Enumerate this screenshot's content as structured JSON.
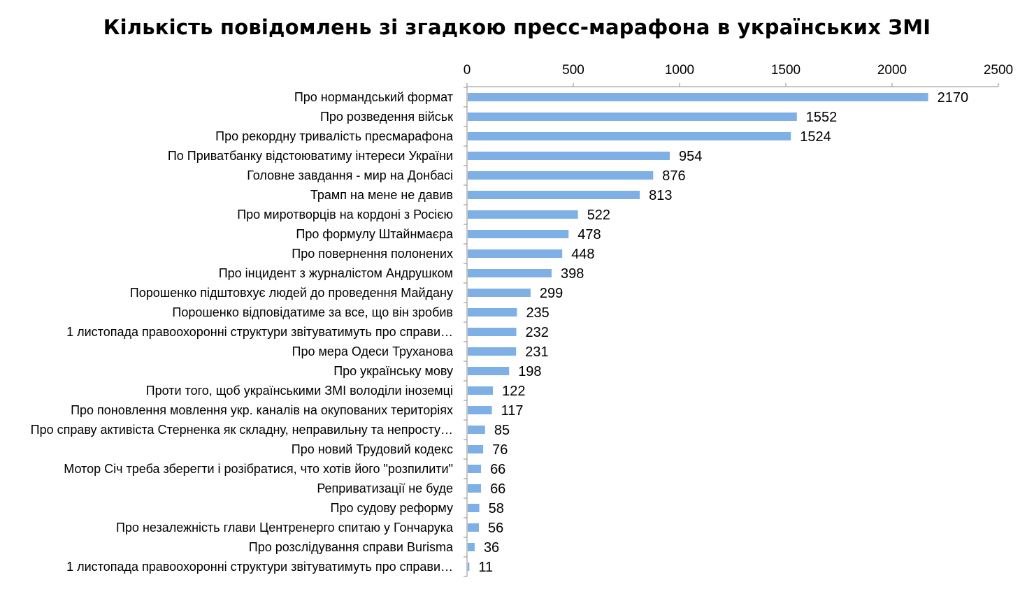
{
  "chart_data": {
    "type": "bar",
    "orientation": "horizontal",
    "title": "Кількість повідомлень зі згадкою пресс-марафона в українських ЗМІ",
    "xlabel": "",
    "ylabel": "",
    "xlim": [
      0,
      2500
    ],
    "x_ticks": [
      "0",
      "500",
      "1000",
      "1500",
      "2000",
      "2500"
    ],
    "x_axis_position": "top",
    "grid": false,
    "legend": "none",
    "bar_color": "#7EB0E6",
    "data_labels": true,
    "categories": [
      "Про нормандський формат",
      "Про розведення військ",
      "Про рекордну тривалість пресмарафона",
      "По Приватбанку відстоюватиму інтереси України",
      "Головне завдання - мир на Донбасі",
      "Трамп на мене не давив",
      "Про миротворців на кордоні з Росією",
      "Про формулу Штайнмаєра",
      "Про повернення полонених",
      "Про інцидент з журналістом Андрушком",
      "Порошенко підштовхує людей до проведення Майдану",
      "Порошенко відповідатиме за все, що він зробив",
      "1 листопада правоохоронні структури звітуватимуть про справи…",
      "Про мера Одеси Труханова",
      "Про українську мову",
      "Проти того, щоб українськими ЗМІ володіли іноземці",
      "Про поновлення мовлення укр. каналів на окупованих територіях",
      "Про справу активіста Стерненка як складну, неправильну та непросту…",
      "Про новий Трудовий кодекс",
      "Мотор Січ треба зберегти і розібратися, что хотів його \"розпилити\"",
      "Реприватизації не буде",
      "Про судову реформу",
      "Про незалежність глави Центренерго спитаю у Гончарука",
      "Про розслідування справи Burisma",
      "1 листопада правоохоронні структури звітуватимуть про справи…"
    ],
    "values": [
      2170,
      1552,
      1524,
      954,
      876,
      813,
      522,
      478,
      448,
      398,
      299,
      235,
      232,
      231,
      198,
      122,
      117,
      85,
      76,
      66,
      66,
      58,
      56,
      36,
      11
    ]
  }
}
